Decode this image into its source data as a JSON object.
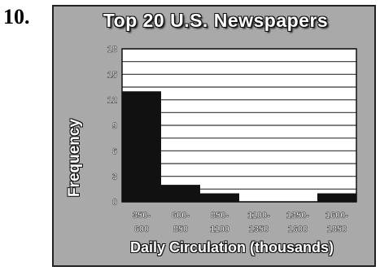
{
  "problem_number": "10.",
  "chart_data": {
    "type": "bar",
    "title": "Top 20 U.S. Newspapers",
    "xlabel": "Daily Circulation (thousands)",
    "ylabel": "Frequency",
    "categories": [
      "350-600",
      "600-850",
      "850-1100",
      "1100-1350",
      "1350-1600",
      "1600-1850"
    ],
    "category_labels": [
      [
        "350-",
        "600"
      ],
      [
        "600-",
        "850"
      ],
      [
        "850-",
        "1100"
      ],
      [
        "1100-",
        "1350"
      ],
      [
        "1350-",
        "1600"
      ],
      [
        "1600-",
        "1850"
      ]
    ],
    "values": [
      13,
      2,
      1,
      0,
      0,
      1
    ],
    "ylim": [
      0,
      18
    ],
    "yticks": [
      0,
      3,
      6,
      9,
      12,
      15,
      18
    ],
    "ytick_labels": [
      "0",
      "3",
      "6",
      "9",
      "12",
      "15",
      "18"
    ],
    "grid": true,
    "colors": {
      "bar": "#111111",
      "plot_background": "#ffffff",
      "frame_background": "#a9a9a9",
      "gridline": "#333333"
    }
  }
}
